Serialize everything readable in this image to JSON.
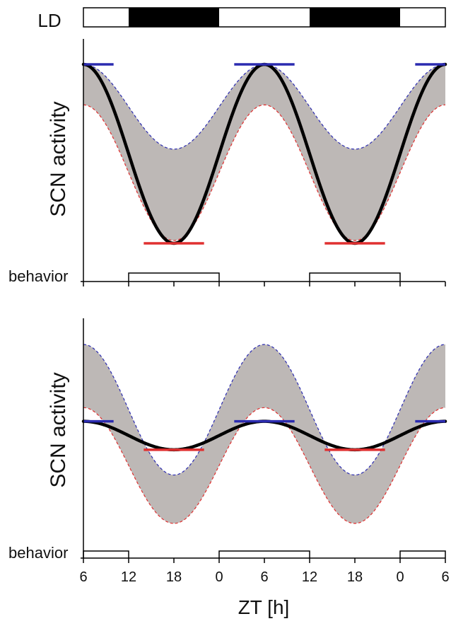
{
  "chart_data": {
    "type": "line",
    "shared_x": {
      "label": "ZT [h]",
      "domain_hours": [
        6,
        54
      ],
      "tick_hours": [
        6,
        12,
        18,
        24,
        30,
        36,
        42,
        48,
        54
      ],
      "tick_labels": [
        "6",
        "12",
        "18",
        "0",
        "6",
        "12",
        "18",
        "0",
        "6"
      ]
    },
    "ld_bar": {
      "label": "LD",
      "dark_periods_hours": [
        [
          12,
          24
        ],
        [
          36,
          48
        ]
      ]
    },
    "panels": [
      {
        "ylabel": "SCN activity",
        "behavior_label": "behavior",
        "behavior_active_hours": [
          [
            12,
            24
          ],
          [
            36,
            48
          ]
        ],
        "ylim": [
          -1.1,
          1.0
        ],
        "envelope_upper": {
          "mean": 0.5,
          "amplitude": 0.45,
          "peak_hour": 6,
          "color": "#2b2bb0"
        },
        "envelope_lower": {
          "mean": -0.2,
          "amplitude": 0.72,
          "peak_hour": 6,
          "color": "#e03030"
        },
        "activity_curve": {
          "mean": 0.0,
          "amplitude": 0.95,
          "peak_hour": 6,
          "color": "#000000"
        },
        "max_markers": {
          "hours": [
            6,
            30,
            54
          ],
          "value": 0.95,
          "half_width_hours": 4,
          "color": "#2b2bb0"
        },
        "min_markers": {
          "hours": [
            18,
            42
          ],
          "value": -0.95,
          "half_width_hours": 4,
          "color": "#e03030"
        }
      },
      {
        "ylabel": "SCN activity",
        "behavior_label": "behavior",
        "behavior_active_hours": [
          [
            6,
            12
          ],
          [
            24,
            36
          ],
          [
            48,
            54
          ]
        ],
        "ylim": [
          -1.1,
          1.0
        ],
        "envelope_upper": {
          "mean": 0.18,
          "amplitude": 0.62,
          "peak_hour": 6,
          "color": "#2b2bb0"
        },
        "envelope_lower": {
          "mean": -0.35,
          "amplitude": 0.55,
          "peak_hour": 6,
          "color": "#e03030"
        },
        "activity_curve": {
          "mean": -0.065,
          "amplitude": 0.135,
          "peak_hour": 6,
          "color": "#000000"
        },
        "max_markers": {
          "hours": [
            6,
            30,
            54
          ],
          "value": 0.07,
          "half_width_hours": 4,
          "color": "#2b2bb0"
        },
        "min_markers": {
          "hours": [
            18,
            42
          ],
          "value": -0.2,
          "half_width_hours": 4,
          "color": "#e03030"
        }
      }
    ]
  }
}
